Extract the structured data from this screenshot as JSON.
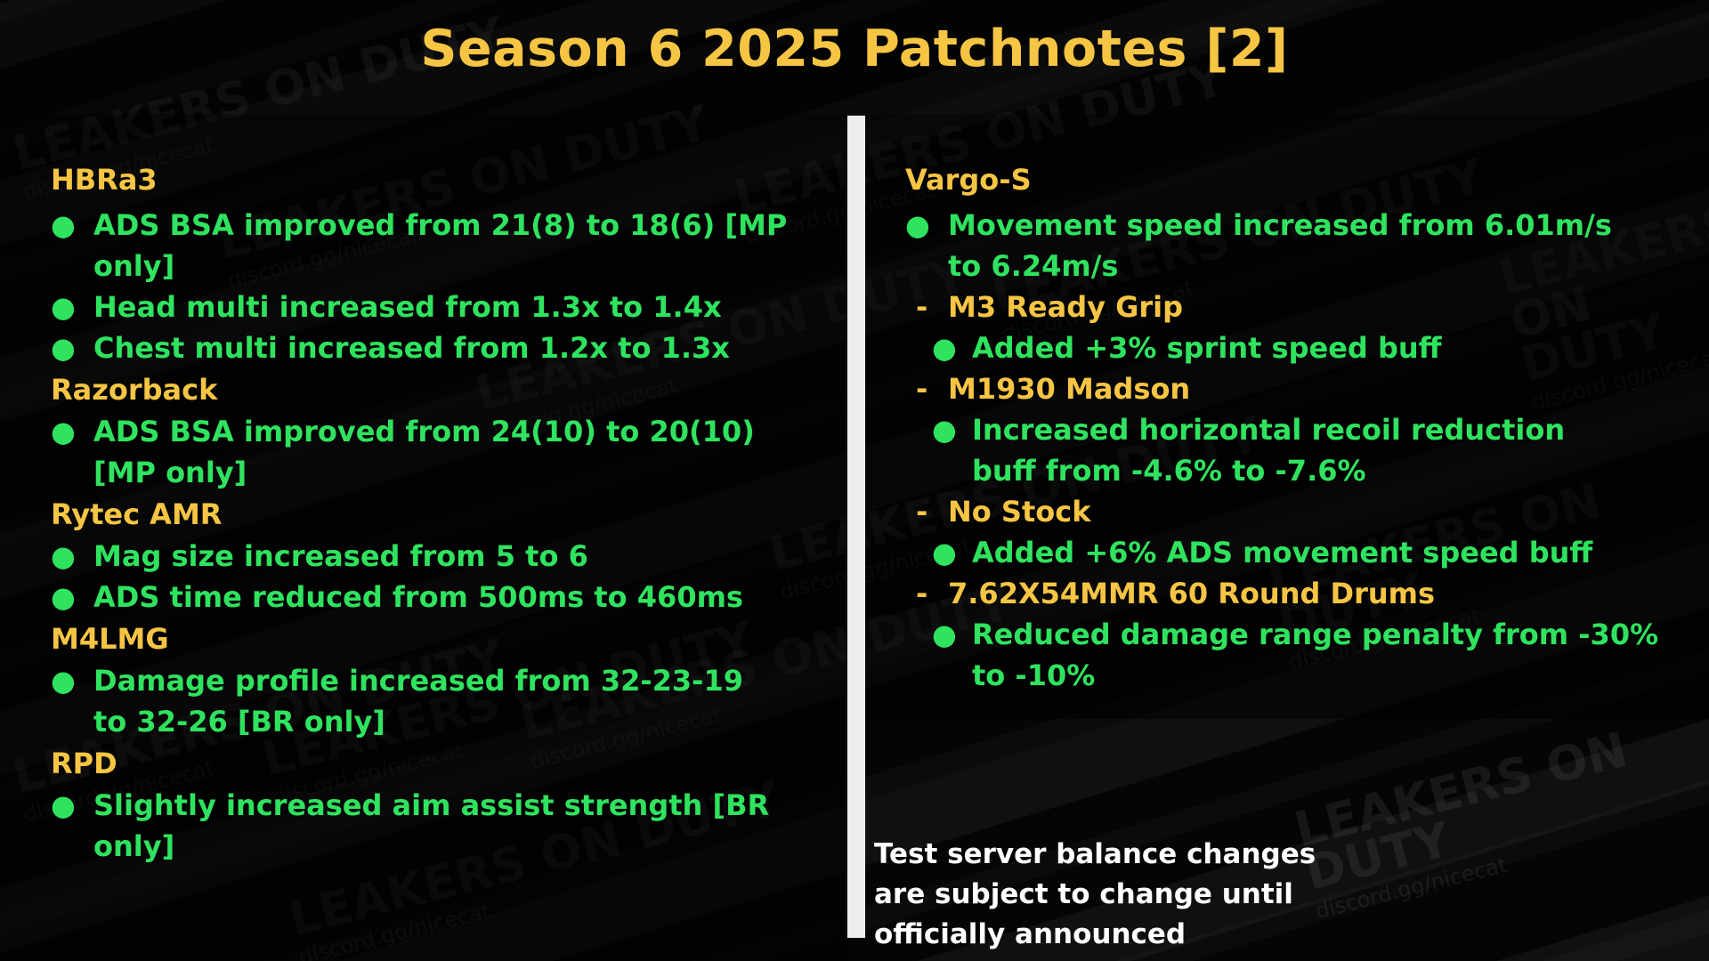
{
  "title": "Season 6 2025 Patchnotes [2]",
  "watermark": {
    "brand": "LEAKERS ON DUTY",
    "link": "discord.gg/nicecat"
  },
  "left_column": [
    {
      "weapon": "HBRa3",
      "changes": [
        "ADS BSA improved from 21(8) to 18(6) [MP only]",
        "Head multi increased from 1.3x to 1.4x",
        "Chest multi increased from 1.2x to 1.3x"
      ]
    },
    {
      "weapon": "Razorback",
      "changes": [
        "ADS BSA improved from 24(10) to 20(10) [MP only]"
      ]
    },
    {
      "weapon": "Rytec AMR",
      "changes": [
        "Mag size increased from 5 to 6",
        "ADS time reduced from 500ms to 460ms"
      ]
    },
    {
      "weapon": "M4LMG",
      "changes": [
        "Damage profile increased from 32-23-19 to 32-26 [BR only]"
      ]
    },
    {
      "weapon": "RPD",
      "changes": [
        "Slightly increased aim assist strength [BR only]"
      ]
    }
  ],
  "right_column": {
    "weapon": "Vargo-S",
    "changes": [
      "Movement speed increased from 6.01m/s to 6.24m/s"
    ],
    "attachments": [
      {
        "name": "M3 Ready Grip",
        "changes": [
          "Added +3% sprint speed buff"
        ]
      },
      {
        "name": "M1930 Madson",
        "changes": [
          "Increased horizontal recoil reduction buff from -4.6% to -7.6%"
        ]
      },
      {
        "name": "No Stock",
        "changes": [
          "Added +6% ADS movement speed buff"
        ]
      },
      {
        "name": "7.62X54MMR 60 Round Drums",
        "changes": [
          "Reduced damage range penalty from -30% to -10%"
        ]
      }
    ]
  },
  "bullet_symbol": "●",
  "dash_symbol": "-",
  "disclaimer": "Test server balance changes are subject to change until officially announced",
  "colors": {
    "title": "#f6c543",
    "weapon_name": "#f6c543",
    "change_text": "#2fe35f",
    "disclaimer": "#ffffff",
    "background": "#050505",
    "divider": "#ededed"
  }
}
